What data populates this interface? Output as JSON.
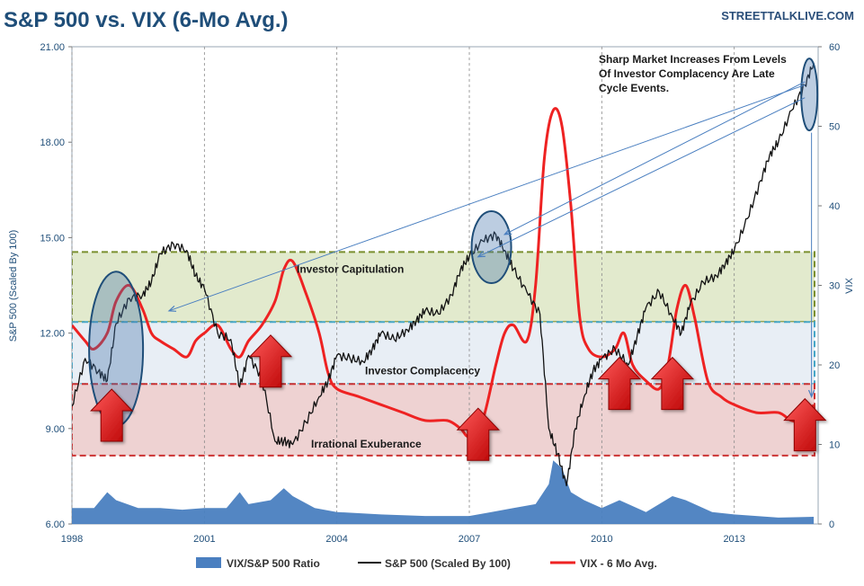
{
  "source": "STREETTALKLIVE.COM",
  "chart_data": {
    "type": "line",
    "title": "S&P 500 vs. VIX (6-Mo Avg.)",
    "ylabel": "S&P 500 (Scaled By 100)",
    "y2label": "VIX",
    "xlim": [
      1998.0,
      2014.9
    ],
    "ylim": [
      6.0,
      21.0
    ],
    "y2lim": [
      0,
      60
    ],
    "x_ticks": [
      "1998",
      "2001",
      "2004",
      "2007",
      "2010",
      "2013"
    ],
    "y_ticks": [
      "6.00",
      "9.00",
      "12.00",
      "15.00",
      "18.00",
      "21.00"
    ],
    "y2_ticks": [
      "0",
      "10",
      "20",
      "30",
      "40",
      "50",
      "60"
    ],
    "grid": "vertical dashed",
    "legend_position": "bottom",
    "series": [
      {
        "name": "S&P 500 (Scaled By 100)",
        "axis": "left",
        "color": "#111111",
        "x": [
          1998.0,
          1998.3,
          1998.6,
          1998.8,
          1999.0,
          1999.3,
          1999.6,
          1999.8,
          2000.0,
          2000.3,
          2000.6,
          2000.8,
          2001.0,
          2001.3,
          2001.6,
          2001.8,
          2002.0,
          2002.3,
          2002.6,
          2002.8,
          2003.0,
          2003.3,
          2003.6,
          2003.8,
          2004.0,
          2004.3,
          2004.6,
          2004.8,
          2005.0,
          2005.3,
          2005.6,
          2005.8,
          2006.0,
          2006.3,
          2006.6,
          2006.8,
          2007.0,
          2007.3,
          2007.6,
          2007.8,
          2008.0,
          2008.3,
          2008.6,
          2008.8,
          2009.0,
          2009.2,
          2009.4,
          2009.6,
          2009.8,
          2010.0,
          2010.3,
          2010.6,
          2010.8,
          2011.0,
          2011.3,
          2011.6,
          2011.8,
          2012.0,
          2012.3,
          2012.6,
          2012.8,
          2013.0,
          2013.3,
          2013.6,
          2013.8,
          2014.0,
          2014.3,
          2014.6,
          2014.8
        ],
        "values": [
          9.7,
          11.2,
          10.8,
          10.5,
          12.3,
          13.1,
          13.2,
          13.6,
          14.5,
          14.8,
          14.6,
          13.8,
          13.4,
          12.0,
          11.8,
          10.3,
          11.3,
          10.6,
          8.6,
          8.6,
          8.5,
          9.2,
          10.0,
          10.5,
          11.3,
          11.2,
          11.1,
          11.5,
          12.0,
          11.8,
          12.1,
          12.4,
          12.7,
          12.6,
          13.2,
          14.0,
          14.4,
          14.9,
          15.1,
          14.6,
          14.0,
          13.3,
          12.6,
          9.0,
          8.2,
          7.2,
          9.0,
          10.0,
          10.8,
          11.2,
          11.5,
          11.0,
          11.9,
          12.8,
          13.3,
          12.5,
          12.0,
          12.9,
          13.6,
          13.8,
          14.2,
          14.6,
          15.6,
          16.8,
          17.6,
          18.0,
          19.0,
          19.8,
          20.5
        ]
      },
      {
        "name": "VIX - 6 Mo Avg.",
        "axis": "right",
        "color": "#ee2222",
        "x": [
          1998.0,
          1998.3,
          1998.5,
          1998.8,
          1999.0,
          1999.3,
          1999.6,
          1999.8,
          2000.0,
          2000.3,
          2000.6,
          2000.8,
          2001.0,
          2001.3,
          2001.6,
          2001.8,
          2002.0,
          2002.3,
          2002.6,
          2002.8,
          2003.0,
          2003.3,
          2003.6,
          2003.8,
          2004.0,
          2004.5,
          2005.0,
          2005.5,
          2006.0,
          2006.5,
          2006.8,
          2007.0,
          2007.3,
          2007.6,
          2007.8,
          2008.0,
          2008.3,
          2008.5,
          2008.7,
          2008.9,
          2009.1,
          2009.3,
          2009.5,
          2009.7,
          2010.0,
          2010.3,
          2010.5,
          2010.7,
          2011.0,
          2011.3,
          2011.5,
          2011.7,
          2011.9,
          2012.1,
          2012.4,
          2012.7,
          2013.0,
          2013.5,
          2014.0,
          2014.3,
          2014.6,
          2014.8
        ],
        "values": [
          25,
          23,
          22,
          24,
          28,
          30,
          27,
          24,
          23,
          22,
          21,
          23,
          24,
          25,
          22,
          21,
          23,
          25,
          28,
          32,
          33,
          29,
          24,
          19,
          17,
          16,
          15,
          14,
          13,
          13,
          12,
          11,
          13,
          20,
          24,
          25,
          23,
          30,
          46,
          52,
          50,
          40,
          26,
          22,
          21,
          22,
          24,
          20,
          18,
          17,
          20,
          27,
          30,
          26,
          18,
          16,
          15,
          14,
          14,
          13,
          13,
          15
        ]
      },
      {
        "name": "VIX/S&P 500 Ratio",
        "axis": "right",
        "type": "area",
        "color": "#4a7fc0",
        "x": [
          1998.0,
          1998.5,
          1998.8,
          1999.0,
          1999.5,
          2000.0,
          2000.5,
          2001.0,
          2001.5,
          2001.8,
          2002.0,
          2002.5,
          2002.8,
          2003.0,
          2003.5,
          2004.0,
          2005.0,
          2006.0,
          2007.0,
          2007.5,
          2008.0,
          2008.5,
          2008.8,
          2008.9,
          2009.1,
          2009.3,
          2009.6,
          2010.0,
          2010.4,
          2011.0,
          2011.6,
          2011.9,
          2012.5,
          2013.0,
          2014.0,
          2014.8
        ],
        "values": [
          2,
          2,
          4,
          3,
          2,
          2,
          1.8,
          2,
          2,
          4,
          2.5,
          3,
          4.5,
          3.5,
          2,
          1.5,
          1.2,
          1,
          1,
          1.5,
          2,
          2.5,
          5,
          8,
          7,
          4,
          3,
          2,
          3,
          1.5,
          3.5,
          3,
          1.5,
          1.2,
          0.8,
          0.9
        ]
      }
    ]
  },
  "zones": [
    {
      "label": "Investor Capitulation",
      "y_from": 12.35,
      "y_to": 14.55,
      "fill": "#dde6c4",
      "stroke": "#7a8f2e"
    },
    {
      "label": "Investor Complacency",
      "y_from": 10.4,
      "y_to": 12.35,
      "fill": "#e4ebf3",
      "stroke": "#46a6c6"
    },
    {
      "label": "Irrational Exuberance",
      "y_from": 8.15,
      "y_to": 10.4,
      "fill": "#ebcaca",
      "stroke": "#cc3333"
    }
  ],
  "annotation": "Sharp Market Increases From Levels\nOf Investor Complacency Are Late\nCycle Events.",
  "highlights": [
    {
      "name": "ellipse-1999",
      "cx": 1999.0,
      "cy": 11.5
    },
    {
      "name": "ellipse-2007",
      "cx": 2007.5,
      "cy": 14.7
    },
    {
      "name": "ellipse-2014",
      "cx": 2014.7,
      "cy": 19.5
    }
  ],
  "arrows": [
    {
      "x": 1998.9,
      "y": 8.6
    },
    {
      "x": 2002.5,
      "y": 10.3
    },
    {
      "x": 2007.2,
      "y": 8.0
    },
    {
      "x": 2010.4,
      "y": 9.6
    },
    {
      "x": 2011.6,
      "y": 9.6
    },
    {
      "x": 2014.6,
      "y": 8.3
    }
  ],
  "pointers": [
    {
      "from": [
        2014.6,
        19.8
      ],
      "to": [
        2000.2,
        12.7
      ]
    },
    {
      "from": [
        2014.6,
        19.9
      ],
      "to": [
        2007.8,
        15.1
      ]
    },
    {
      "from": [
        2014.6,
        19.4
      ],
      "to": [
        2007.2,
        14.4
      ]
    },
    {
      "from": [
        2014.75,
        18.3
      ],
      "to": [
        2014.75,
        10.0
      ]
    }
  ]
}
